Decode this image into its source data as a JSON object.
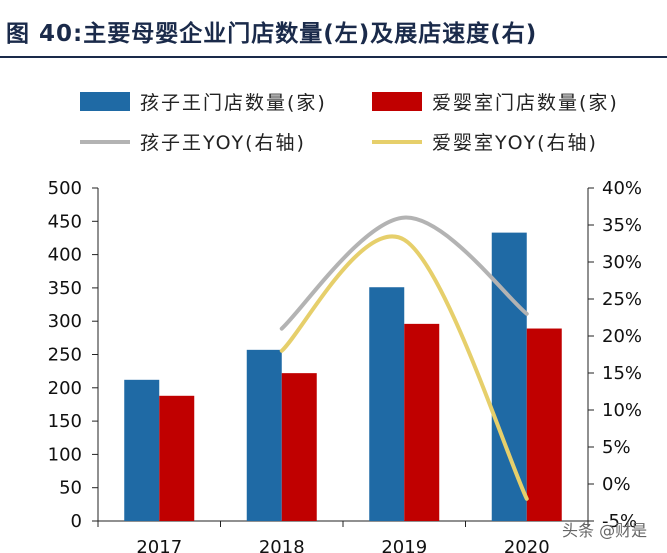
{
  "figure": {
    "title": "图 40:主要母婴企业门店数量(左)及展店速度(右)"
  },
  "chart_data": {
    "type": "bar+line",
    "categories": [
      "2017",
      "2018",
      "2019",
      "2020"
    ],
    "series": [
      {
        "name": "孩子王门店数量(家)",
        "kind": "bar",
        "axis": "left",
        "color": "#1f6aa5",
        "values": [
          212,
          257,
          351,
          433
        ]
      },
      {
        "name": "爱婴室门店数量(家)",
        "kind": "bar",
        "axis": "left",
        "color": "#c00000",
        "values": [
          188,
          222,
          296,
          289
        ]
      },
      {
        "name": "孩子王YOY(右轴)",
        "kind": "line",
        "axis": "right",
        "color": "#b3b3b3",
        "values": [
          null,
          21,
          36,
          23
        ]
      },
      {
        "name": "爱婴室YOY(右轴)",
        "kind": "line",
        "axis": "right",
        "color": "#e6cf6b",
        "values": [
          null,
          18,
          33,
          -2
        ]
      }
    ],
    "y_left": {
      "min": 0,
      "max": 500,
      "step": 50,
      "ticks": [
        "0",
        "50",
        "100",
        "150",
        "200",
        "250",
        "300",
        "350",
        "400",
        "450",
        "500"
      ]
    },
    "y_right": {
      "min": -5,
      "max": 40,
      "step": 5,
      "ticks": [
        "-5%",
        "0%",
        "5%",
        "10%",
        "15%",
        "20%",
        "25%",
        "30%",
        "35%",
        "40%"
      ]
    },
    "legend_position": "top",
    "grid": false
  },
  "watermark": "头条 @财是"
}
